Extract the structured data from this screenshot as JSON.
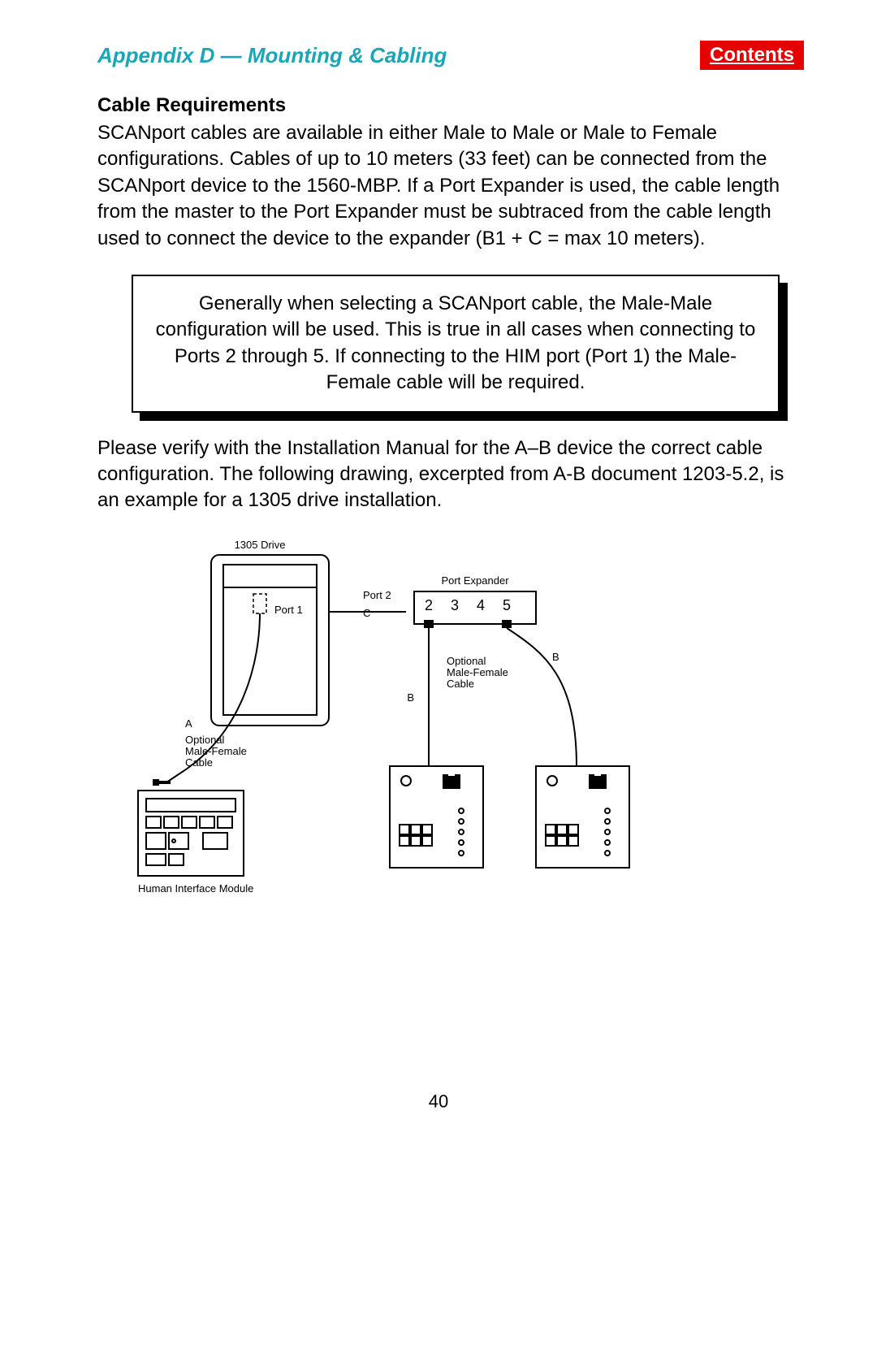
{
  "header": {
    "appendix": "Appendix D — Mounting & Cabling",
    "contents": "Contents"
  },
  "section": {
    "title": "Cable Requirements",
    "para1": "SCANport cables are available in either Male to Male or Male to Female configurations.  Cables of up to 10 meters (33 feet) can be connected from the SCANport device to the 1560-MBP.  If a Port Expander is used, the cable length from the master to the Port Expander must be subtraced from the cable length used to connect the device to the expander (B1 + C = max 10 meters).",
    "note": "Generally when selecting a SCANport cable, the Male-Male configuration will be used.  This is true in all cases when connecting to Ports 2 through 5.  If connecting to the HIM port (Port 1) the Male-Female cable will be required.",
    "para2": "Please verify with the Installation Manual for the A–B device the correct cable configuration.  The following drawing, excerpted from A-B document 1203-5.2, is an example for a 1305 drive installation."
  },
  "diagram": {
    "type": "wiring-diagram",
    "labels": {
      "drive": "1305 Drive",
      "port1": "Port 1",
      "port2": "Port 2",
      "c": "C",
      "expander": "Port Expander",
      "ports": [
        "2",
        "3",
        "4",
        "5"
      ],
      "a": "A",
      "b_left": "B",
      "b_right": "B",
      "opt_cable1_l1": "Optional",
      "opt_cable1_l2": "Male-Female",
      "opt_cable1_l3": "Cable",
      "opt_cable2_l1": "Optional",
      "opt_cable2_l2": "Male-Female",
      "opt_cable2_l3": "Cable",
      "him": "Human Interface Module"
    },
    "colors": {
      "stroke": "#000000",
      "bg": "#ffffff",
      "text": "#000000"
    },
    "stroke_width": 2,
    "font_small": 13,
    "font_port": 18
  },
  "page_number": "40"
}
